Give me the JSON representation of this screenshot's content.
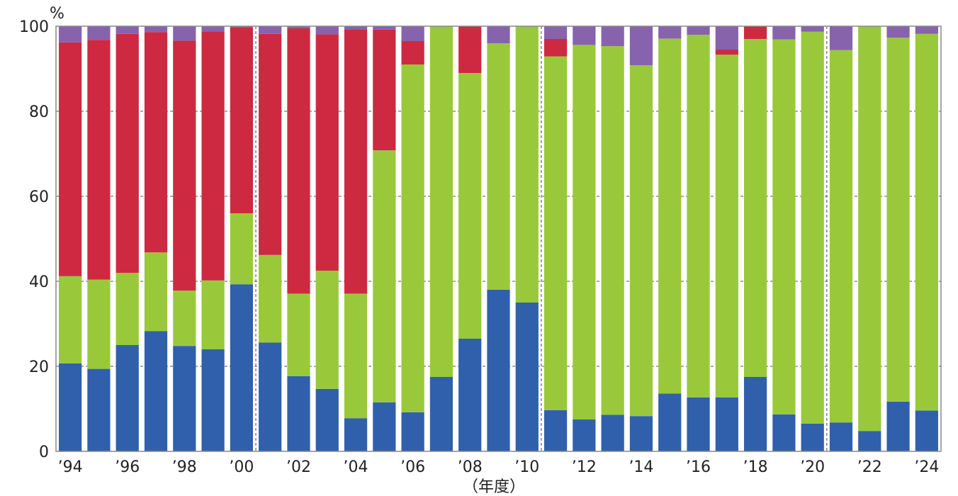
{
  "chart_data": {
    "type": "bar",
    "stacked": true,
    "unit": "%",
    "xlabel": "（年度）",
    "ylabel": "",
    "ylim": [
      0,
      100
    ],
    "yticks": [
      "0",
      "20",
      "40",
      "60",
      "80",
      "100"
    ],
    "grid": "horizontal dashed",
    "categories": [
      "1994",
      "1995",
      "1996",
      "1997",
      "1998",
      "1999",
      "2000",
      "2001",
      "2002",
      "2003",
      "2004",
      "2005",
      "2006",
      "2007",
      "2008",
      "2009",
      "2010",
      "2011",
      "2012",
      "2013",
      "2014",
      "2015",
      "2016",
      "2017",
      "2018",
      "2019",
      "2020",
      "2021",
      "2022",
      "2023",
      "2024"
    ],
    "xtick_labels": [
      "’94",
      "",
      "’96",
      "",
      "’98",
      "",
      "’00",
      "",
      "’02",
      "",
      "’04",
      "",
      "’06",
      "",
      "’08",
      "",
      "’10",
      "",
      "’12",
      "",
      "’14",
      "",
      "’16",
      "",
      "’18",
      "",
      "’20",
      "",
      "’22",
      "",
      "’24"
    ],
    "period_dividers_after": [
      "2000",
      "2010",
      "2020"
    ],
    "series": [
      {
        "color": "#3060ac",
        "values": [
          20.7,
          19.4,
          25.0,
          28.3,
          24.8,
          24.0,
          39.3,
          25.6,
          17.7,
          14.7,
          7.8,
          11.5,
          9.2,
          17.5,
          26.5,
          38.0,
          35.0,
          9.7,
          7.5,
          8.6,
          8.3,
          13.6,
          12.7,
          12.7,
          17.5,
          8.7,
          6.5,
          6.8,
          4.8,
          11.7,
          9.6
        ]
      },
      {
        "color": "#99c93a",
        "values": [
          20.5,
          21.0,
          17.0,
          18.5,
          13.0,
          16.2,
          16.7,
          20.6,
          19.4,
          27.8,
          29.3,
          59.3,
          81.8,
          82.5,
          62.5,
          58.0,
          65.0,
          83.2,
          88.1,
          86.7,
          82.5,
          83.5,
          85.3,
          80.6,
          79.5,
          88.2,
          92.2,
          87.6,
          95.2,
          85.6,
          88.6
        ]
      },
      {
        "color": "#cd2a42",
        "values": [
          55.0,
          56.4,
          56.2,
          51.8,
          58.8,
          58.6,
          43.8,
          52.0,
          62.4,
          55.6,
          62.2,
          28.4,
          5.5,
          0.0,
          11.0,
          0.0,
          0.0,
          4.1,
          0.0,
          0.0,
          0.0,
          0.0,
          0.0,
          1.2,
          3.0,
          0.0,
          0.0,
          0.0,
          0.0,
          0.0,
          0.0
        ]
      },
      {
        "color": "#8763ae",
        "values": [
          3.8,
          3.2,
          1.8,
          1.4,
          3.4,
          1.2,
          0.2,
          1.8,
          0.5,
          1.9,
          0.7,
          0.8,
          3.5,
          0.0,
          0.0,
          4.0,
          0.0,
          3.0,
          4.4,
          4.7,
          9.2,
          2.9,
          2.0,
          5.5,
          0.0,
          3.1,
          1.3,
          5.6,
          0.0,
          2.7,
          1.8
        ]
      }
    ]
  }
}
